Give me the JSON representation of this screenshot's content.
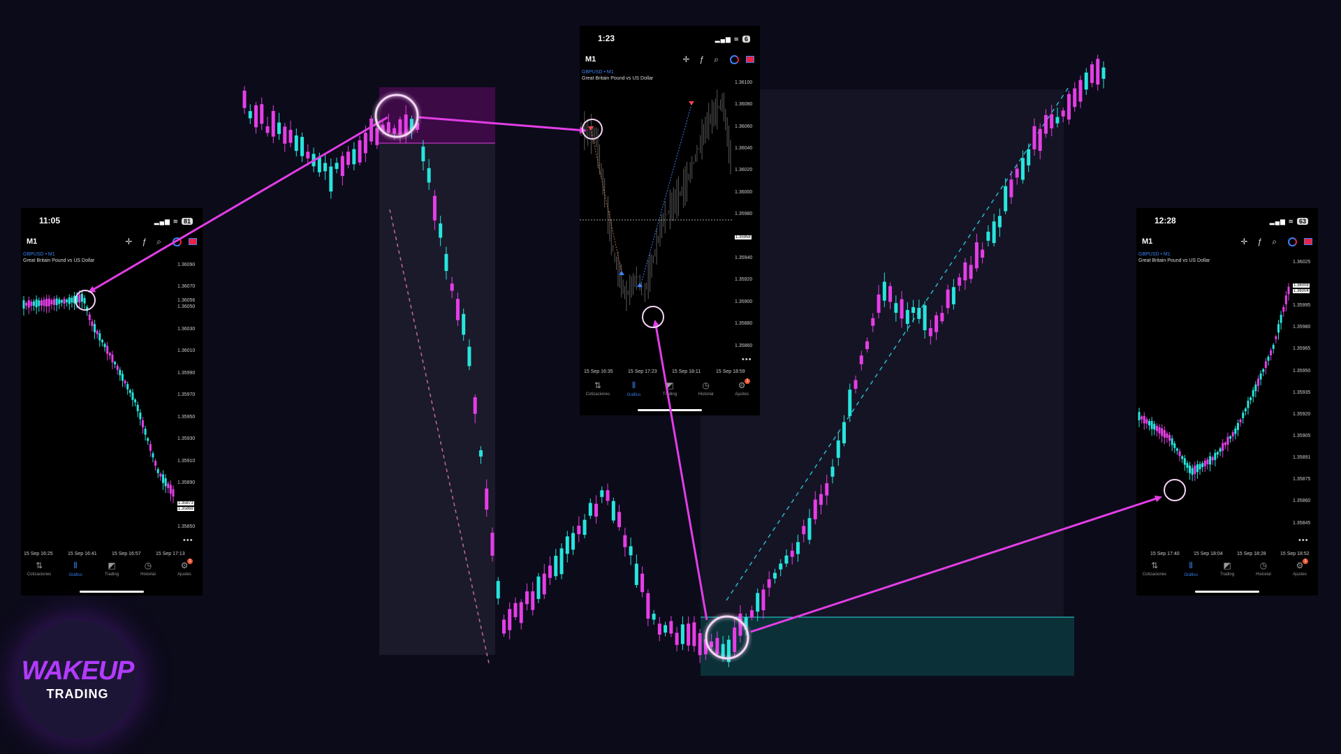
{
  "colors": {
    "background": "#0c0b1a",
    "bull": "#27e5dd",
    "bear": "#e53ee6",
    "arrow": "#e23ee6",
    "sell_zone": "#3a0a40",
    "buy_zone": "#0a3038",
    "accent": "#3b82f6"
  },
  "logo": {
    "line1": "WAKEUP",
    "line2": "TRADING"
  },
  "phones": [
    {
      "id": "left",
      "time": "11:05",
      "battery": "81",
      "timeframe": "M1",
      "symbol": "GBPUSD • M1",
      "description": "Great Britain Pound vs US Dollar",
      "y_ticks": [
        "1.36090",
        "1.36070",
        "1.36050",
        "1.36030",
        "1.36010",
        "1.35990",
        "1.35970",
        "1.35950",
        "1.35930",
        "1.35910",
        "1.35890",
        "1.35870",
        "1.35850"
      ],
      "y_extra": "1.36056",
      "price_tags": [
        "1.35873",
        "1.35868"
      ],
      "x_ticks": [
        "15 Sep 16:25",
        "15 Sep 16:41",
        "15 Sep 16:57",
        "15 Sep 17:13"
      ],
      "nav": [
        "Cotizaciones",
        "Gráfico",
        "Trading",
        "Historial",
        "Ajustes"
      ],
      "badge": "1"
    },
    {
      "id": "center",
      "time": "1:23",
      "battery": "6",
      "timeframe": "M1",
      "symbol": "GBPUSD • M1",
      "description": "Great Britain Pound vs US Dollar",
      "y_ticks": [
        "1.36100",
        "1.36080",
        "1.36060",
        "1.36040",
        "1.36020",
        "1.36000",
        "1.35980",
        "1.35960",
        "1.35940",
        "1.35920",
        "1.35900",
        "1.35880",
        "1.35860"
      ],
      "price_tags": [
        "1.35958"
      ],
      "x_ticks": [
        "15 Sep 16:35",
        "15 Sep 17:23",
        "15 Sep 18:11",
        "15 Sep 18:59"
      ],
      "nav": [
        "Cotizaciones",
        "Gráfico",
        "Trading",
        "Historial",
        "Ajustes"
      ],
      "badge": "1"
    },
    {
      "id": "right",
      "time": "12:28",
      "battery": "63",
      "timeframe": "M1",
      "symbol": "GBPUSD • M1",
      "description": "Great Britain Pound vs US Dollar",
      "y_ticks": [
        "1.36025",
        "1.36010",
        "1.35995",
        "1.35980",
        "1.35965",
        "1.35950",
        "1.35935",
        "1.35920",
        "1.35905",
        "1.35890",
        "1.35875",
        "1.35860",
        "1.35845"
      ],
      "y_extra": "1.35891",
      "price_tags": [
        "1.36008",
        "1.36004"
      ],
      "x_ticks": [
        "15 Sep 17:40",
        "15 Sep 18:04",
        "15 Sep 18:28",
        "15 Sep 18:52"
      ],
      "nav": [
        "Cotizaciones",
        "Gráfico",
        "Trading",
        "Historial",
        "Ajustes"
      ],
      "badge": "1"
    }
  ]
}
